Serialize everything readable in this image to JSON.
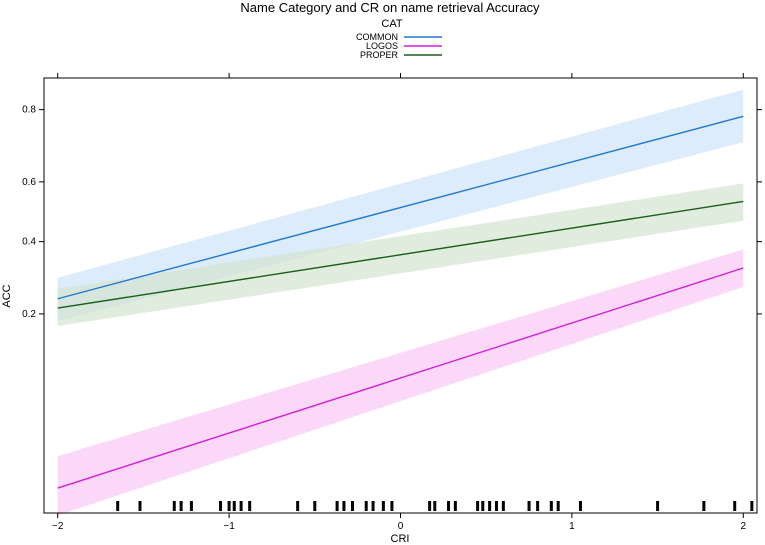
{
  "chart_data": {
    "type": "line",
    "title": "Name Category and CR on name retrieval Accuracy",
    "xlabel": "CRI",
    "ylabel": "ACC",
    "xlim": [
      -2.08,
      2.08
    ],
    "x_ticks": [
      -2,
      -1,
      0,
      1,
      2
    ],
    "x_tick_labels": [
      "−2",
      "−1",
      "0",
      "1",
      "2"
    ],
    "y_scale": "logit",
    "y_ticks": [
      0.2,
      0.4,
      0.6,
      0.8
    ],
    "y_tick_labels": [
      "0.2",
      "0.4",
      "0.6",
      "0.8"
    ],
    "legend": {
      "title": "CAT",
      "placement": "top",
      "entries": [
        "COMMON",
        "LOGOS",
        "PROPER"
      ]
    },
    "grid": false,
    "series": [
      {
        "name": "COMMON",
        "color": "#1f78d1",
        "band_color": "#cfe4f8",
        "x": [
          -2,
          2
        ],
        "y": [
          0.235,
          0.785
        ],
        "lower": [
          0.185,
          0.72
        ],
        "upper": [
          0.29,
          0.84
        ]
      },
      {
        "name": "LOGOS",
        "color": "#d21fd8",
        "band_color": "#f9c8f5",
        "x": [
          -2,
          2
        ],
        "y": [
          0.023,
          0.318
        ],
        "lower": [
          0.016,
          0.265
        ],
        "upper": [
          0.035,
          0.375
        ]
      },
      {
        "name": "PROPER",
        "color": "#1b5e1b",
        "band_color": "#d3e4cf",
        "x": [
          -2,
          2
        ],
        "y": [
          0.213,
          0.535
        ],
        "lower": [
          0.175,
          0.47
        ],
        "upper": [
          0.26,
          0.595
        ]
      }
    ],
    "rug": [
      -1.65,
      -1.52,
      -1.32,
      -1.28,
      -1.22,
      -1.05,
      -1.0,
      -0.97,
      -0.93,
      -0.88,
      -0.6,
      -0.5,
      -0.37,
      -0.33,
      -0.28,
      -0.2,
      -0.16,
      -0.1,
      -0.05,
      0.17,
      0.2,
      0.28,
      0.32,
      0.45,
      0.48,
      0.52,
      0.56,
      0.6,
      0.75,
      0.8,
      0.88,
      0.92,
      1.05,
      1.5,
      1.77,
      1.95,
      2.05
    ]
  }
}
